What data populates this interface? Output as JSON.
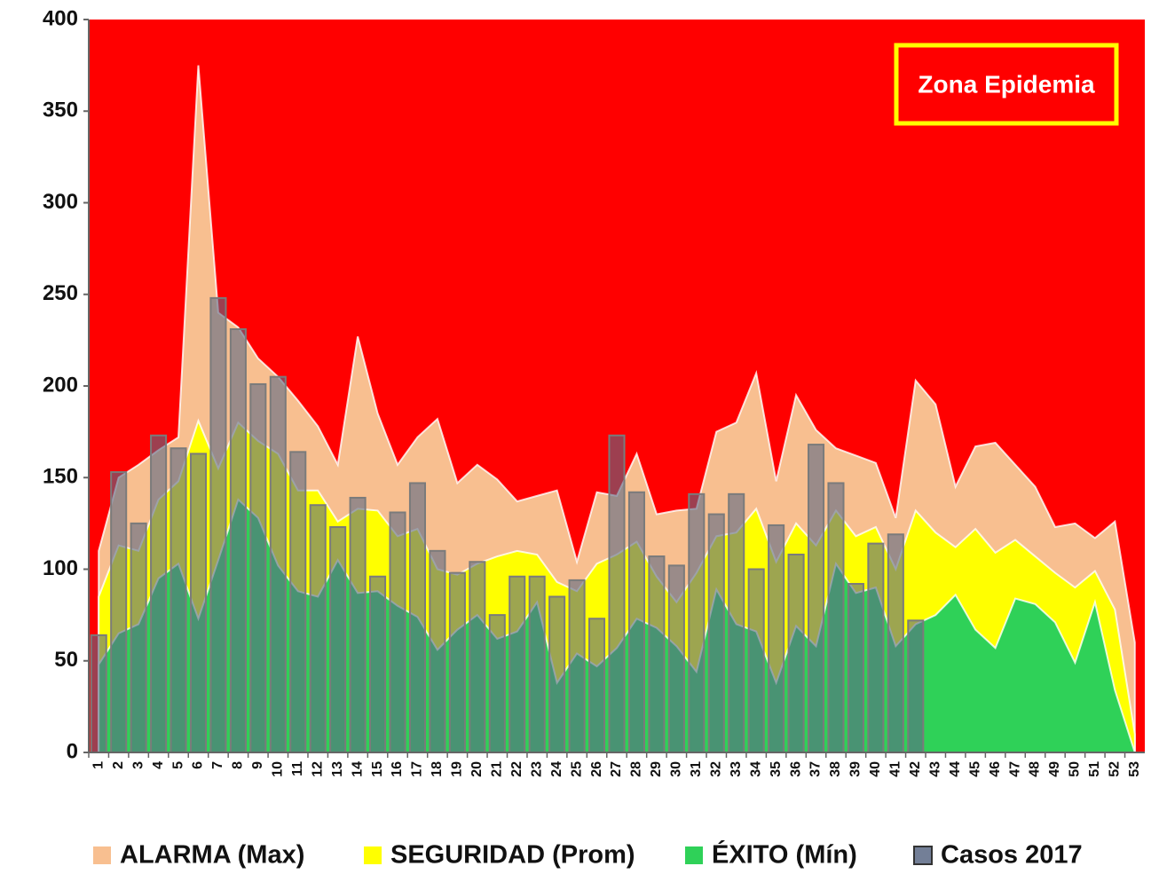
{
  "chart_data": {
    "type": "epidemic-channel",
    "annotation": "Zona Epidemia",
    "background_color": "#ff0000",
    "categories": [
      "1",
      "2",
      "3",
      "4",
      "5",
      "6",
      "7",
      "8",
      "9",
      "10",
      "11",
      "12",
      "13",
      "14",
      "15",
      "16",
      "17",
      "18",
      "19",
      "20",
      "21",
      "22",
      "23",
      "24",
      "25",
      "26",
      "27",
      "28",
      "29",
      "30",
      "31",
      "32",
      "33",
      "34",
      "35",
      "36",
      "37",
      "38",
      "39",
      "40",
      "41",
      "42",
      "43",
      "44",
      "45",
      "46",
      "47",
      "48",
      "49",
      "50",
      "51",
      "52",
      "53"
    ],
    "ylim": [
      0,
      400
    ],
    "yticks": [
      0,
      50,
      100,
      150,
      200,
      250,
      300,
      350,
      400
    ],
    "series": [
      {
        "name": "ALARMA (Max)",
        "kind": "area",
        "color": "#f8bf90",
        "values": [
          110,
          150,
          157,
          165,
          172,
          375,
          240,
          232,
          215,
          205,
          192,
          178,
          157,
          227,
          185,
          157,
          172,
          182,
          147,
          157,
          149,
          137,
          140,
          143,
          104,
          142,
          140,
          163,
          130,
          132,
          133,
          175,
          180,
          207,
          148,
          195,
          176,
          166,
          162,
          158,
          128,
          203,
          190,
          145,
          167,
          169,
          157,
          145,
          123,
          125,
          117,
          126,
          60
        ]
      },
      {
        "name": "SEGURIDAD (Prom)",
        "kind": "area",
        "color": "#ffff00",
        "values": [
          85,
          113,
          110,
          138,
          148,
          181,
          155,
          180,
          170,
          163,
          143,
          143,
          126,
          133,
          132,
          118,
          122,
          100,
          97,
          103,
          107,
          110,
          108,
          93,
          88,
          103,
          108,
          115,
          96,
          82,
          98,
          118,
          120,
          133,
          104,
          125,
          113,
          132,
          118,
          123,
          100,
          132,
          120,
          112,
          122,
          109,
          116,
          107,
          98,
          90,
          99,
          78,
          10
        ]
      },
      {
        "name": "ÉXITO (Mín)",
        "kind": "area",
        "color": "#2fd158",
        "values": [
          48,
          65,
          70,
          95,
          103,
          73,
          105,
          138,
          128,
          102,
          88,
          85,
          105,
          87,
          88,
          80,
          74,
          56,
          67,
          75,
          62,
          66,
          82,
          38,
          54,
          47,
          57,
          73,
          68,
          58,
          44,
          89,
          70,
          66,
          38,
          69,
          58,
          103,
          87,
          90,
          58,
          70,
          75,
          86,
          67,
          57,
          84,
          81,
          71,
          49,
          82,
          34,
          0
        ]
      },
      {
        "name": "Casos 2017",
        "kind": "bar",
        "color": "#5b6985",
        "values": [
          64,
          153,
          125,
          173,
          166,
          163,
          248,
          231,
          201,
          205,
          164,
          135,
          123,
          139,
          96,
          131,
          147,
          110,
          98,
          104,
          75,
          96,
          96,
          85,
          94,
          73,
          173,
          142,
          107,
          102,
          141,
          130,
          141,
          100,
          124,
          108,
          168,
          147,
          92,
          114,
          119,
          72,
          null,
          null,
          null,
          null,
          null,
          null,
          null,
          null,
          null,
          null,
          null
        ]
      }
    ]
  }
}
